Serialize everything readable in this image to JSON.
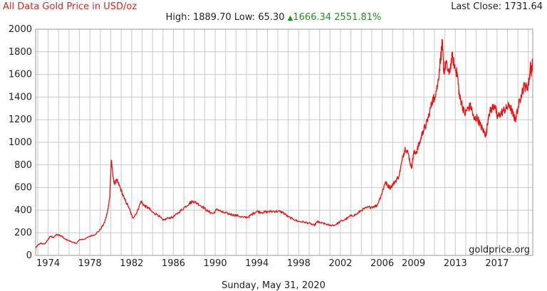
{
  "header": {
    "title": "All Data Gold Price in USD/oz",
    "last_close_label": "Last Close:",
    "last_close_value": "1731.64",
    "high_label": "High:",
    "high_value": "1889.70",
    "low_label": "Low:",
    "low_value": "65.30",
    "change_value": "1666.34",
    "change_percent": "2551.81%"
  },
  "footer": {
    "date": "Sunday, May 31, 2020",
    "watermark": "goldprice.org"
  },
  "colors": {
    "series": "#ee1111",
    "title": "#e2231a",
    "up": "#1f8f1f",
    "grid": "#c9c9c9"
  },
  "chart_data": {
    "type": "line",
    "title": "All Data Gold Price in USD/oz",
    "xlabel": "",
    "ylabel": "",
    "xlim": [
      1972.8,
      2020.42
    ],
    "ylim": [
      0,
      2000
    ],
    "grid": true,
    "legend": "none",
    "x_ticks": [
      1974,
      1978,
      1982,
      1986,
      1990,
      1994,
      1998,
      2002,
      2006,
      2009,
      2013,
      2017
    ],
    "y_ticks": [
      0,
      200,
      400,
      600,
      800,
      1000,
      1200,
      1400,
      1600,
      1800,
      2000
    ],
    "series": [
      {
        "values_x": [
          1972.8,
          1973.0,
          1973.3,
          1973.5,
          1973.7,
          1974.0,
          1974.2,
          1974.5,
          1974.8,
          1975.0,
          1975.3,
          1975.6,
          1976.0,
          1976.4,
          1976.7,
          1977.0,
          1977.5,
          1978.0,
          1978.5,
          1979.0,
          1979.4,
          1979.7,
          1979.9,
          1980.05,
          1980.3,
          1980.6,
          1980.9,
          1981.3,
          1981.7,
          1982.1,
          1982.5,
          1982.9,
          1983.2,
          1983.6,
          1984.0,
          1984.5,
          1985.0,
          1985.5,
          1986.0,
          1986.5,
          1987.0,
          1987.5,
          1987.9,
          1988.3,
          1988.8,
          1989.3,
          1989.8,
          1990.2,
          1990.7,
          1991.2,
          1991.7,
          1992.2,
          1992.7,
          1993.2,
          1993.6,
          1994.0,
          1994.5,
          1995.0,
          1995.5,
          1996.0,
          1996.5,
          1997.0,
          1997.5,
          1998.0,
          1998.5,
          1999.0,
          1999.5,
          1999.8,
          2000.0,
          2000.5,
          2001.0,
          2001.5,
          2002.0,
          2002.5,
          2003.0,
          2003.5,
          2004.0,
          2004.5,
          2005.0,
          2005.5,
          2006.0,
          2006.3,
          2006.5,
          2006.8,
          2007.2,
          2007.6,
          2008.0,
          2008.2,
          2008.5,
          2008.8,
          2009.0,
          2009.3,
          2009.6,
          2009.9,
          2010.2,
          2010.5,
          2010.8,
          2011.0,
          2011.3,
          2011.6,
          2011.75,
          2011.9,
          2012.1,
          2012.4,
          2012.7,
          2013.0,
          2013.2,
          2013.4,
          2013.6,
          2013.9,
          2014.2,
          2014.5,
          2014.8,
          2015.1,
          2015.4,
          2015.7,
          2015.95,
          2016.2,
          2016.5,
          2016.8,
          2017.0,
          2017.3,
          2017.6,
          2017.9,
          2018.2,
          2018.5,
          2018.75,
          2019.0,
          2019.3,
          2019.6,
          2019.9,
          2020.1,
          2020.2,
          2020.3,
          2020.42
        ],
        "values_y": [
          65,
          90,
          110,
          100,
          105,
          140,
          170,
          160,
          185,
          180,
          170,
          145,
          130,
          115,
          105,
          140,
          145,
          170,
          185,
          230,
          290,
          390,
          520,
          840,
          640,
          660,
          600,
          500,
          430,
          330,
          380,
          480,
          440,
          420,
          380,
          360,
          310,
          330,
          340,
          380,
          420,
          460,
          480,
          460,
          430,
          390,
          370,
          410,
          380,
          370,
          360,
          350,
          335,
          340,
          370,
          390,
          380,
          385,
          390,
          390,
          380,
          340,
          320,
          300,
          295,
          285,
          265,
          300,
          290,
          280,
          265,
          270,
          300,
          320,
          350,
          360,
          400,
          420,
          430,
          440,
          560,
          650,
          620,
          600,
          650,
          700,
          880,
          950,
          900,
          770,
          900,
          920,
          1000,
          1100,
          1150,
          1250,
          1370,
          1400,
          1500,
          1750,
          1880,
          1620,
          1700,
          1600,
          1760,
          1650,
          1600,
          1400,
          1350,
          1250,
          1300,
          1320,
          1200,
          1220,
          1150,
          1100,
          1060,
          1250,
          1300,
          1330,
          1220,
          1250,
          1280,
          1300,
          1330,
          1250,
          1200,
          1300,
          1420,
          1500,
          1480,
          1560,
          1680,
          1620,
          1731.64
        ]
      }
    ]
  }
}
